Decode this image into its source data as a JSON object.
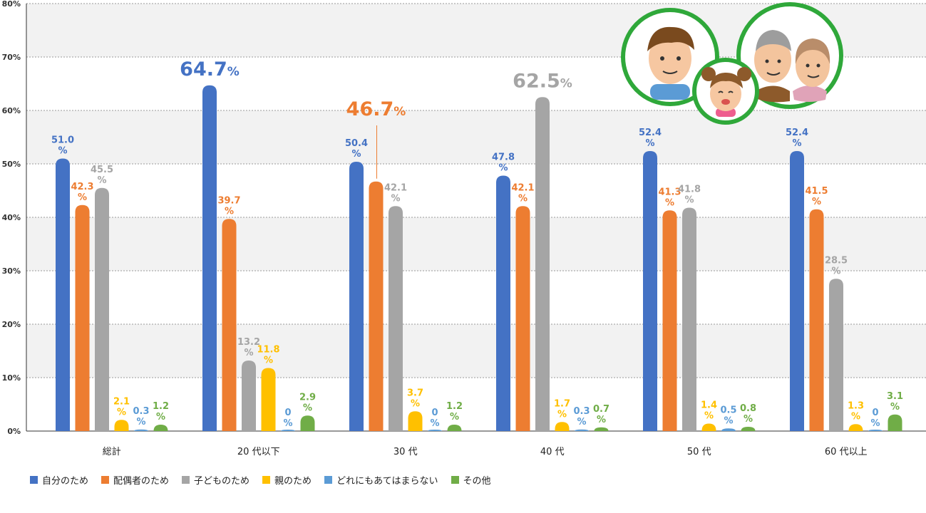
{
  "chart_data": {
    "type": "bar",
    "ylim": [
      0,
      80
    ],
    "yticks": [
      "0%",
      "10%",
      "20%",
      "30%",
      "40%",
      "50%",
      "60%",
      "70%",
      "80%"
    ],
    "categories": [
      "総計",
      "20 代以下",
      "30 代",
      "40 代",
      "50 代",
      "60 代以上"
    ],
    "series": [
      {
        "name": "自分のため",
        "color": "#4472c4",
        "values": [
          51.0,
          64.7,
          50.4,
          47.8,
          52.4,
          52.4
        ]
      },
      {
        "name": "配偶者のため",
        "color": "#ed7d31",
        "values": [
          42.3,
          39.7,
          46.7,
          42.1,
          41.3,
          41.5
        ]
      },
      {
        "name": "子どものため",
        "color": "#a5a5a5",
        "values": [
          45.5,
          13.2,
          42.1,
          62.5,
          41.8,
          28.5
        ]
      },
      {
        "name": "親のため",
        "color": "#ffc000",
        "values": [
          2.1,
          11.8,
          3.7,
          1.7,
          1.4,
          1.3
        ]
      },
      {
        "name": "どれにもあてはまらない",
        "color": "#5b9bd5",
        "values": [
          0.3,
          0,
          0,
          0.3,
          0.5,
          0
        ]
      },
      {
        "name": "その他",
        "color": "#70ad47",
        "values": [
          1.2,
          2.9,
          1.2,
          0.7,
          0.8,
          3.1
        ]
      }
    ],
    "labels": [
      [
        "51.0",
        "42.3",
        "45.5",
        "2.1",
        "0.3",
        "1.2"
      ],
      [
        "64.7",
        "39.7",
        "13.2",
        "11.8",
        "0",
        "2.9"
      ],
      [
        "50.4",
        "46.7",
        "42.1",
        "3.7",
        "0",
        "1.2"
      ],
      [
        "47.8",
        "42.1",
        "62.5",
        "1.7",
        "0.3",
        "0.7"
      ],
      [
        "52.4",
        "41.3",
        "41.8",
        "1.4",
        "0.5",
        "0.8"
      ],
      [
        "52.4",
        "41.5",
        "28.5",
        "1.3",
        "0",
        "3.1"
      ]
    ],
    "percent_sign": "%",
    "highlights": [
      {
        "category": 1,
        "series": 0
      },
      {
        "category": 2,
        "series": 1
      },
      {
        "category": 3,
        "series": 2
      }
    ],
    "grid": true,
    "legend_position": "bottom-left"
  },
  "illustration": {
    "icon": "family-icon"
  }
}
